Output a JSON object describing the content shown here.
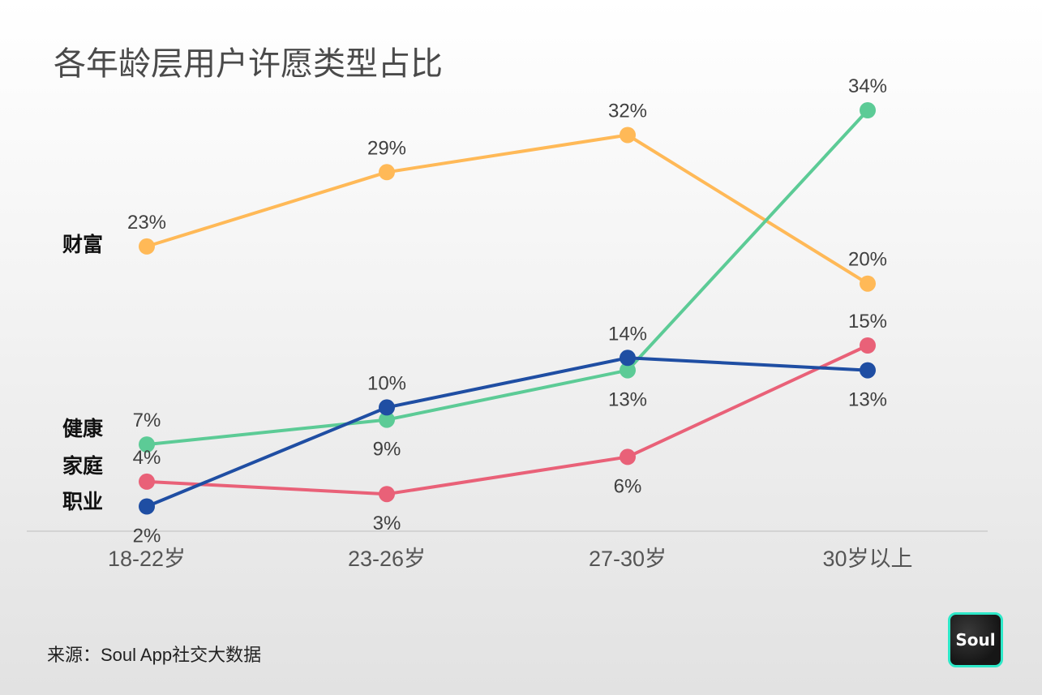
{
  "chart_data": {
    "type": "line",
    "title": "各年龄层用户许愿类型占比",
    "categories": [
      "18-22岁",
      "23-26岁",
      "27-30岁",
      "30岁以上"
    ],
    "ylim": [
      0,
      40
    ],
    "grid": false,
    "series": [
      {
        "name": "财富",
        "color": "#ffb957",
        "values": [
          23,
          29,
          32,
          20
        ],
        "labels": [
          "23%",
          "29%",
          "32%",
          "20%"
        ],
        "label_pos": [
          "above",
          "above",
          "above",
          "above"
        ]
      },
      {
        "name": "健康",
        "color": "#5ccb96",
        "values": [
          7,
          9,
          13,
          34
        ],
        "labels": [
          "7%",
          "9%",
          "13%",
          "34%"
        ],
        "label_pos": [
          "above",
          "below",
          "below",
          "above"
        ]
      },
      {
        "name": "家庭",
        "color": "#e96178",
        "values": [
          4,
          3,
          6,
          15
        ],
        "labels": [
          "4%",
          "3%",
          "6%",
          "15%"
        ],
        "label_pos": [
          "above",
          "below",
          "below",
          "above"
        ]
      },
      {
        "name": "职业",
        "color": "#1f4ea3",
        "values": [
          2,
          10,
          14,
          13
        ],
        "labels": [
          "2%",
          "10%",
          "14%",
          "13%"
        ],
        "label_pos": [
          "below",
          "above",
          "above",
          "below"
        ]
      }
    ]
  },
  "footer": {
    "source": "来源：Soul App社交大数据",
    "logo_text": "Soul"
  }
}
